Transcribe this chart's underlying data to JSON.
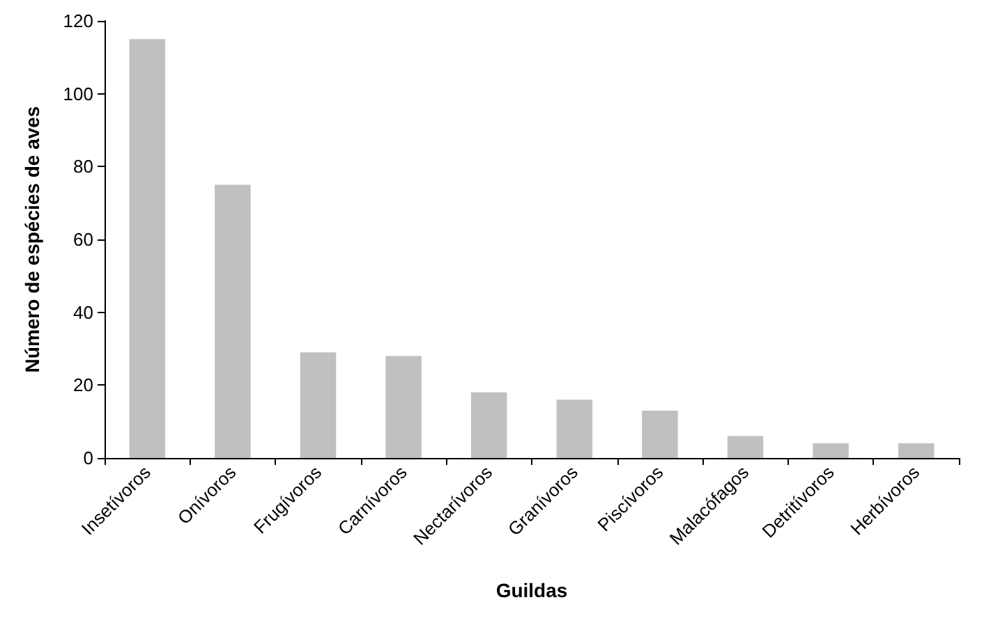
{
  "chart_data": {
    "type": "bar",
    "xlabel": "Guildas",
    "ylabel": "Número de espécies de aves",
    "categories": [
      "Insetívoros",
      "Onívoros",
      "Frugívoros",
      "Carnívoros",
      "Nectarívoros",
      "Granívoros",
      "Piscívoros",
      "Malacófagos",
      "Detritívoros",
      "Herbívoros"
    ],
    "values": [
      115,
      75,
      29,
      28,
      18,
      16,
      13,
      6,
      4,
      4
    ],
    "color": "#c0c0c0",
    "ylim": [
      0,
      120
    ],
    "yticks": [
      0,
      20,
      40,
      60,
      80,
      100,
      120
    ],
    "grid": false
  }
}
